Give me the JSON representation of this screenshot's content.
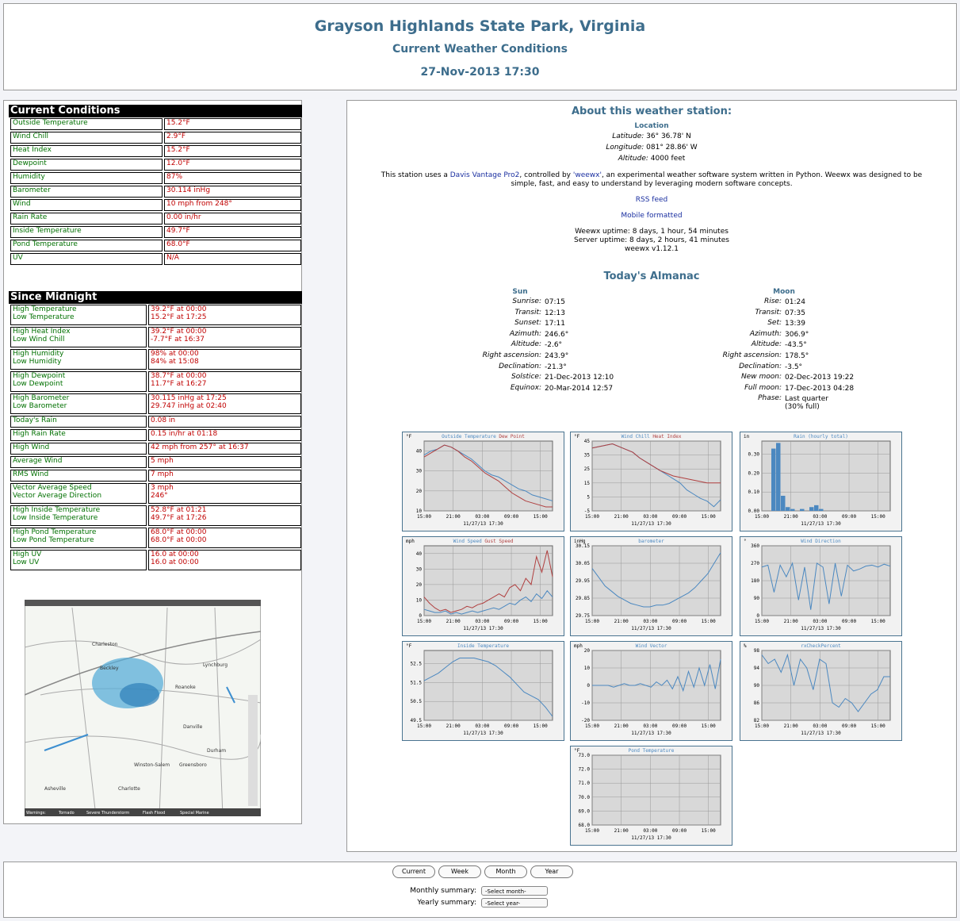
{
  "header": {
    "title": "Grayson Highlands State Park, Virginia",
    "subtitle": "Current Weather Conditions",
    "date": "27-Nov-2013 17:30"
  },
  "current_conditions": {
    "title": "Current Conditions",
    "rows": [
      [
        "Outside Temperature",
        "15.2°F"
      ],
      [
        "Wind Chill",
        "2.9°F"
      ],
      [
        "Heat Index",
        "15.2°F"
      ],
      [
        "Dewpoint",
        "12.0°F"
      ],
      [
        "Humidity",
        "87%"
      ],
      [
        "Barometer",
        "30.114 inHg"
      ],
      [
        "Wind",
        "10 mph from 248°"
      ],
      [
        "Rain Rate",
        "0.00 in/hr"
      ],
      [
        "Inside Temperature",
        "49.7°F"
      ],
      [
        "Pond Temperature",
        "68.0°F"
      ],
      [
        "UV",
        "N/A"
      ]
    ]
  },
  "since_midnight": {
    "title": "Since Midnight",
    "rows": [
      {
        "labels": [
          "High Temperature",
          "Low Temperature"
        ],
        "values": [
          "39.2°F at 00:00",
          "15.2°F at 17:25"
        ]
      },
      {
        "labels": [
          "High Heat Index",
          "Low Wind Chill"
        ],
        "values": [
          "39.2°F at 00:00",
          "-7.7°F at 16:37"
        ]
      },
      {
        "labels": [
          "High Humidity",
          "Low Humidity"
        ],
        "values": [
          "98% at 00:00",
          "84% at 15:08"
        ]
      },
      {
        "labels": [
          "High Dewpoint",
          "Low Dewpoint"
        ],
        "values": [
          "38.7°F at 00:00",
          "11.7°F at 16:27"
        ]
      },
      {
        "labels": [
          "High Barometer",
          "Low Barometer"
        ],
        "values": [
          "30.115 inHg at 17:25",
          "29.747 inHg at 02:40"
        ]
      },
      {
        "labels": [
          "Today's Rain"
        ],
        "values": [
          "0.08 in"
        ]
      },
      {
        "labels": [
          "High Rain Rate"
        ],
        "values": [
          "0.15 in/hr at 01:18"
        ]
      },
      {
        "labels": [
          "High Wind"
        ],
        "values": [
          "42 mph from 257° at 16:37"
        ]
      },
      {
        "labels": [
          "Average Wind"
        ],
        "values": [
          "5 mph"
        ]
      },
      {
        "labels": [
          "RMS Wind"
        ],
        "values": [
          "7 mph"
        ]
      },
      {
        "labels": [
          "Vector Average Speed",
          "Vector Average Direction"
        ],
        "values": [
          "3 mph",
          "246°"
        ]
      },
      {
        "labels": [
          "High Inside Temperature",
          "Low Inside Temperature"
        ],
        "values": [
          "52.8°F at 01:21",
          "49.7°F at 17:26"
        ]
      },
      {
        "labels": [
          "High Pond Temperature",
          "Low Pond Temperature"
        ],
        "values": [
          "68.0°F at 00:00",
          "68.0°F at 00:00"
        ]
      },
      {
        "labels": [
          "High UV",
          "Low UV"
        ],
        "values": [
          "16.0 at 00:00",
          "16.0 at 00:00"
        ]
      }
    ]
  },
  "radar": {
    "cities": [
      "Beckley",
      "Charleston",
      "Roanoke",
      "Lynchburg",
      "Winston-Salem",
      "Greensboro",
      "Durham",
      "Charlotte",
      "Asheville",
      "Danville"
    ],
    "legend": [
      "Warnings:",
      "Tornado",
      "Severe Thunderstorm",
      "Flash Flood",
      "Special Marine"
    ]
  },
  "about": {
    "title": "About this weather station:",
    "location_label": "Location",
    "location": [
      [
        "Latitude:",
        "36° 36.78' N"
      ],
      [
        "Longitude:",
        "081° 28.86' W"
      ],
      [
        "Altitude:",
        "4000 feet"
      ]
    ],
    "description": [
      "This station uses a ",
      "Davis Vantage Pro2",
      ", controlled by ",
      "'weewx'",
      ", an experimental weather software system written in Python. Weewx was designed to be simple, fast, and easy to understand by leveraging modern software concepts."
    ],
    "rss": "RSS feed",
    "mobile": "Mobile formatted",
    "uptime": [
      "Weewx uptime: 8 days, 1 hour, 54 minutes",
      "Server uptime: 8 days, 2 hours, 41 minutes",
      "weewx v1.12.1"
    ]
  },
  "almanac": {
    "title": "Today's Almanac",
    "sun": {
      "title": "Sun",
      "rows": [
        [
          "Sunrise:",
          "07:15"
        ],
        [
          "Transit:",
          "12:13"
        ],
        [
          "Sunset:",
          "17:11"
        ],
        [
          "Azimuth:",
          "246.6°"
        ],
        [
          "Altitude:",
          "-2.6°"
        ],
        [
          "Right ascension:",
          "243.9°"
        ],
        [
          "Declination:",
          "-21.3°"
        ],
        [
          "Solstice:",
          "21-Dec-2013 12:10"
        ],
        [
          "Equinox:",
          "20-Mar-2014 12:57"
        ]
      ]
    },
    "moon": {
      "title": "Moon",
      "rows": [
        [
          "Rise:",
          "01:24"
        ],
        [
          "Transit:",
          "07:35"
        ],
        [
          "Set:",
          "13:39"
        ],
        [
          "Azimuth:",
          "306.9°"
        ],
        [
          "Altitude:",
          "-43.5°"
        ],
        [
          "Right ascension:",
          "178.5°"
        ],
        [
          "Declination:",
          "-3.5°"
        ],
        [
          "New moon:",
          "02-Dec-2013 19:22"
        ],
        [
          "Full moon:",
          "17-Dec-2013 04:28"
        ],
        [
          "Phase:",
          "Last quarter",
          "(30% full)"
        ]
      ]
    }
  },
  "plots": {
    "xticks": [
      "15:00",
      "21:00",
      "03:00",
      "09:00",
      "15:00"
    ],
    "x_label": "11/27/13 17:30",
    "items": [
      {
        "type": "line",
        "units": "°F",
        "ylim": [
          10,
          45
        ],
        "yticks": [
          10,
          20,
          30,
          40
        ],
        "series": [
          {
            "name": "Outside Temperature",
            "color": "#4b88c0",
            "values": [
              38,
              40,
              41,
              43,
              42,
              40,
              38,
              36,
              33,
              30,
              28,
              27,
              25,
              23,
              21,
              20,
              18,
              17,
              16,
              15
            ]
          },
          {
            "name": "Dew Point",
            "color": "#b04040",
            "values": [
              37,
              39,
              41,
              43,
              42,
              40,
              37,
              35,
              32,
              29,
              27,
              25,
              22,
              19,
              17,
              15,
              14,
              13,
              12,
              12
            ]
          }
        ]
      },
      {
        "type": "line",
        "units": "°F",
        "ylim": [
          -5,
          45
        ],
        "yticks": [
          -5,
          5,
          15,
          25,
          35,
          45
        ],
        "series": [
          {
            "name": "Wind Chill",
            "color": "#4b88c0",
            "values": [
              40,
              41,
              42,
              43,
              41,
              39,
              37,
              33,
              30,
              27,
              24,
              21,
              18,
              15,
              10,
              7,
              4,
              2,
              -2,
              3
            ]
          },
          {
            "name": "Heat Index",
            "color": "#b04040",
            "values": [
              40,
              41,
              42,
              43,
              41,
              39,
              37,
              33,
              30,
              27,
              24,
              22,
              20,
              19,
              18,
              17,
              16,
              15,
              15,
              15
            ]
          }
        ]
      },
      {
        "type": "bar",
        "units": "in",
        "ylim": [
          0,
          0.37
        ],
        "yticks": [
          {
            "value": 0,
            "label": "0.00"
          },
          {
            "value": 0.1,
            "label": "0.10"
          },
          {
            "value": 0.2,
            "label": "0.20"
          },
          {
            "value": 0.3,
            "label": "0.30"
          }
        ],
        "series": [
          {
            "name": "Rain (hourly total)",
            "color": "#4b88c0",
            "values": [
              0,
              0,
              0.33,
              0.36,
              0.08,
              0.02,
              0.01,
              0,
              0.01,
              0,
              0.02,
              0.03,
              0.01,
              0,
              0,
              0,
              0,
              0,
              0,
              0,
              0,
              0,
              0,
              0,
              0,
              0,
              0
            ]
          }
        ]
      },
      {
        "type": "line",
        "units": "mph",
        "ylim": [
          0,
          45
        ],
        "yticks": [
          0,
          10,
          20,
          30,
          40
        ],
        "series": [
          {
            "name": "Wind Speed",
            "color": "#4b88c0",
            "values": [
              4,
              3,
              2,
              2,
              3,
              1,
              2,
              1,
              2,
              3,
              2,
              3,
              4,
              5,
              4,
              6,
              8,
              7,
              10,
              12,
              9,
              14,
              11,
              16,
              12
            ]
          },
          {
            "name": "Gust Speed",
            "color": "#b04040",
            "values": [
              12,
              8,
              5,
              3,
              4,
              2,
              3,
              4,
              6,
              5,
              7,
              8,
              10,
              12,
              14,
              12,
              18,
              20,
              16,
              24,
              20,
              38,
              28,
              42,
              25
            ]
          }
        ]
      },
      {
        "type": "line",
        "units": "inHg",
        "ylim": [
          29.75,
          30.15
        ],
        "yticks": [
          29.75,
          29.85,
          29.95,
          30.05,
          30.15
        ],
        "series": [
          {
            "name": "barometer",
            "color": "#4b88c0",
            "values": [
              30.02,
              29.97,
              29.92,
              29.89,
              29.86,
              29.84,
              29.82,
              29.81,
              29.8,
              29.8,
              29.81,
              29.81,
              29.82,
              29.84,
              29.86,
              29.88,
              29.91,
              29.95,
              29.99,
              30.05,
              30.11
            ]
          }
        ]
      },
      {
        "type": "line",
        "units": "°",
        "ylim": [
          0,
          360
        ],
        "yticks": [
          0,
          90,
          180,
          270,
          360
        ],
        "series": [
          {
            "name": "Wind Direction",
            "color": "#4b88c0",
            "values": [
              250,
              260,
              120,
              260,
              200,
              270,
              80,
              250,
              30,
              270,
              250,
              60,
              270,
              100,
              260,
              230,
              240,
              255,
              260,
              250,
              265,
              255
            ]
          }
        ]
      },
      {
        "type": "line",
        "units": "°F",
        "ylim": [
          49.5,
          53.2
        ],
        "yticks": [
          49.5,
          50.5,
          51.5,
          52.5
        ],
        "series": [
          {
            "name": "Inside Temperature",
            "color": "#4b88c0",
            "values": [
              51.6,
              51.8,
              52,
              52.3,
              52.6,
              52.8,
              52.8,
              52.8,
              52.7,
              52.6,
              52.4,
              52.1,
              51.8,
              51.4,
              51,
              50.8,
              50.6,
              50.2,
              49.7
            ]
          }
        ]
      },
      {
        "type": "line",
        "units": "mph",
        "ylim": [
          -20,
          20
        ],
        "yticks": [
          -20,
          -10,
          0,
          10,
          20
        ],
        "series": [
          {
            "name": "Wind Vector",
            "color": "#4b88c0",
            "values": [
              0,
              0,
              0,
              0,
              -1,
              0,
              1,
              0,
              0,
              1,
              0,
              -1,
              2,
              0,
              3,
              -2,
              5,
              -3,
              8,
              -1,
              10,
              0,
              12,
              -2,
              15
            ]
          }
        ]
      },
      {
        "type": "line",
        "units": "%",
        "ylim": [
          82,
          98
        ],
        "yticks": [
          82,
          86,
          90,
          94,
          98
        ],
        "series": [
          {
            "name": "rxCheckPercent",
            "color": "#4b88c0",
            "values": [
              97,
              95,
              96,
              93,
              97,
              90,
              96,
              94,
              89,
              96,
              95,
              86,
              85,
              87,
              86,
              84,
              86,
              88,
              89,
              92,
              92
            ]
          }
        ]
      },
      {
        "type": "line",
        "units": "°F",
        "ylim": [
          68,
          73
        ],
        "yticks": [
          {
            "value": 68,
            "label": "68.0"
          },
          {
            "value": 69,
            "label": "69.0"
          },
          {
            "value": 70,
            "label": "70.0"
          },
          {
            "value": 71,
            "label": "71.0"
          },
          {
            "value": 72,
            "label": "72.0"
          },
          {
            "value": 73,
            "label": "73.0"
          }
        ],
        "series": [
          {
            "name": "Pond Temperature",
            "color": "#4b88c0",
            "values": []
          }
        ]
      }
    ]
  },
  "footer": {
    "buttons": [
      "Current",
      "Week",
      "Month",
      "Year"
    ],
    "monthly_label": "Monthly summary:",
    "monthly_select": "-Select month-",
    "yearly_label": "Yearly summary:",
    "yearly_select": "-Select year-"
  }
}
